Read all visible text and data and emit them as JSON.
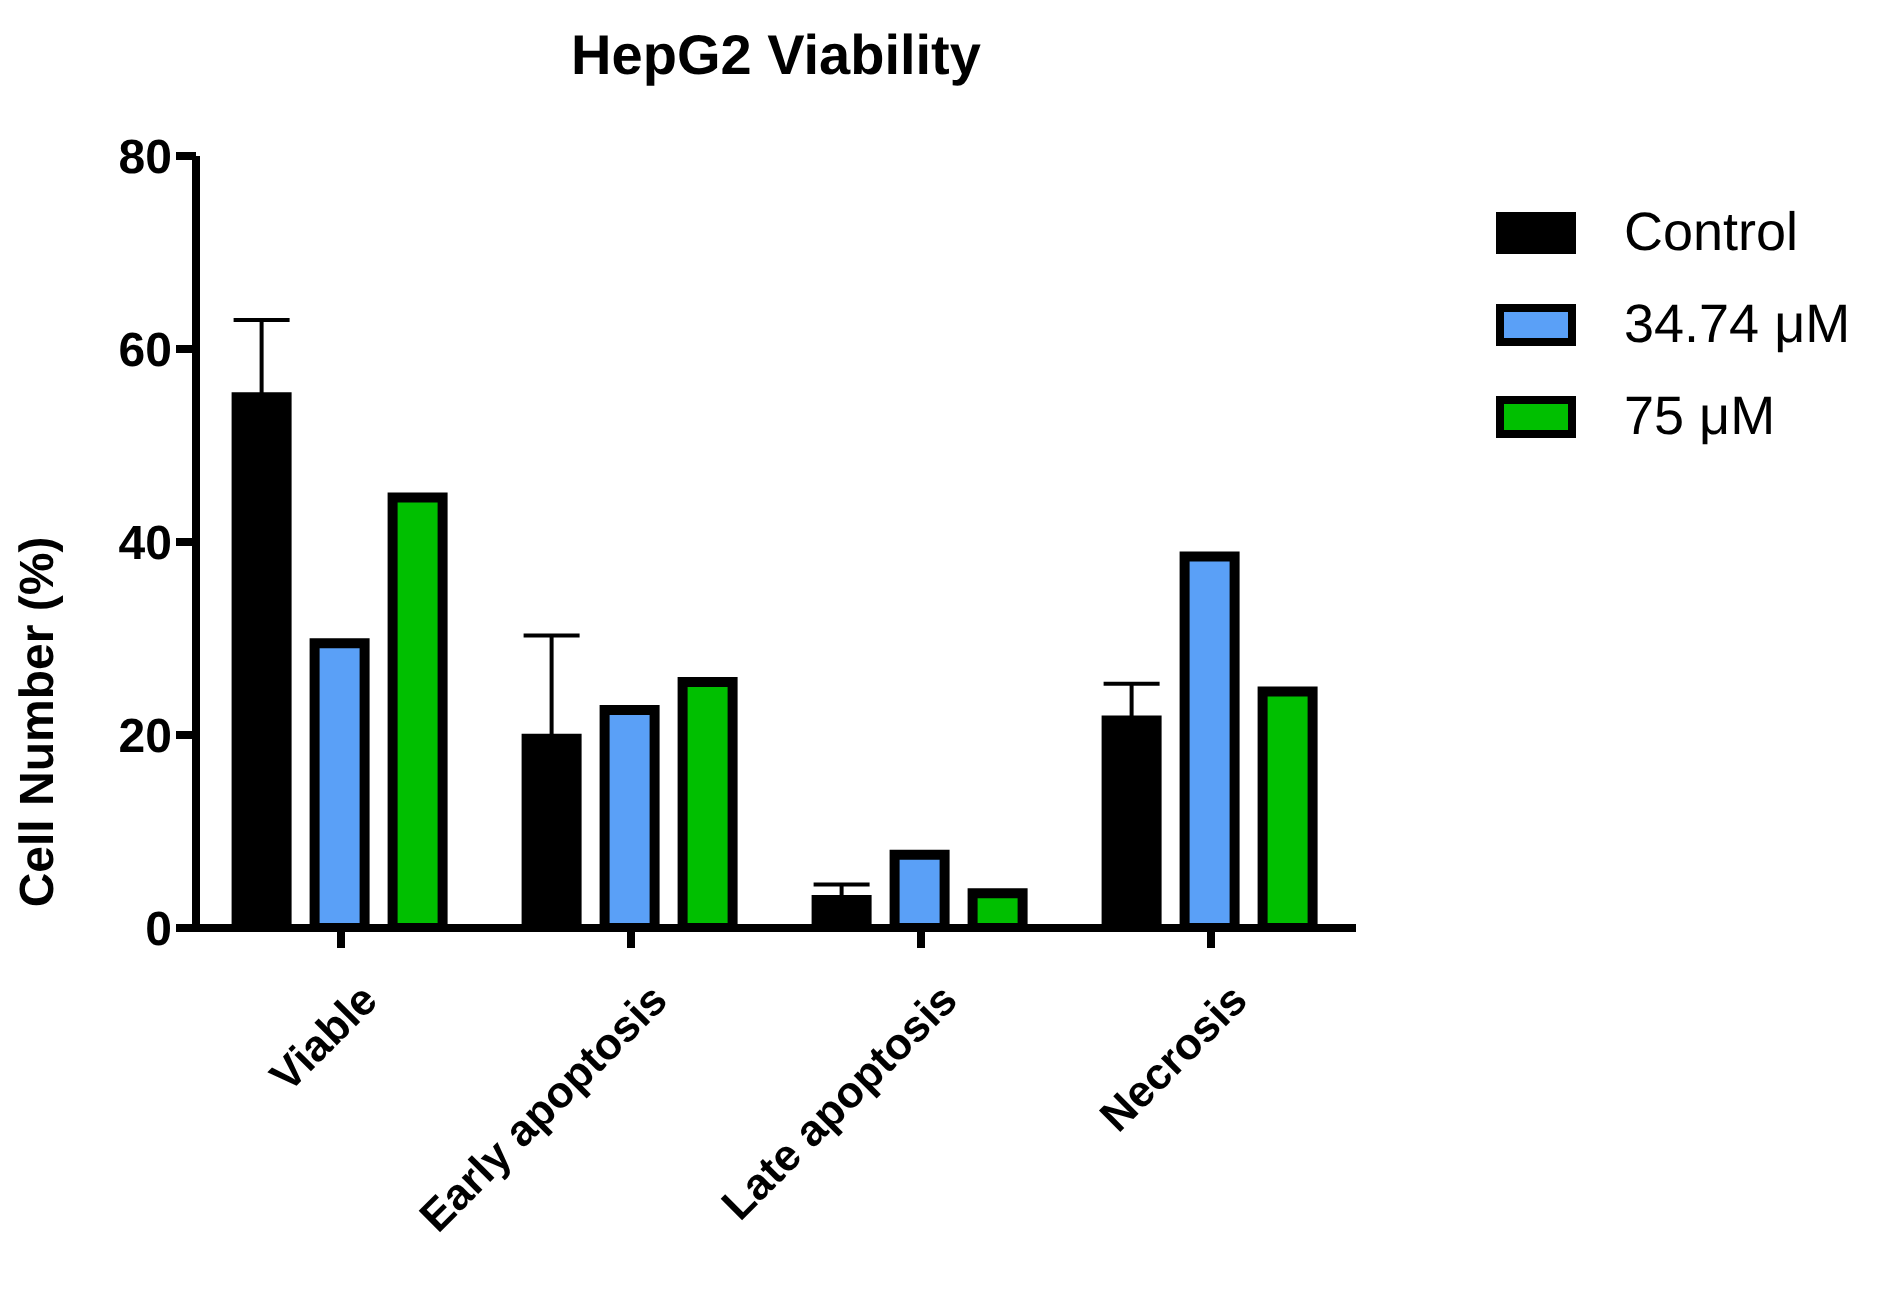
{
  "chart_data": {
    "type": "bar",
    "title": "HepG2 Viability",
    "ylabel": "Cell Number (%)",
    "categories": [
      "Viable",
      "Early apoptosis",
      "Late apoptosis",
      "Necrosis"
    ],
    "series": [
      {
        "name": "Control",
        "color": "#000000",
        "values": [
          55,
          19.6,
          2.9,
          21.5
        ],
        "errors": [
          [
            55,
            63
          ],
          [
            19.6,
            30.3
          ],
          [
            2.9,
            4.5
          ],
          [
            21.5,
            25.3
          ]
        ]
      },
      {
        "name": "34.74 μM",
        "color": "#5aa0f7",
        "values": [
          29.5,
          22.6,
          7.6,
          38.5
        ]
      },
      {
        "name": "75 μM",
        "color": "#00bf00",
        "values": [
          44.6,
          25.5,
          3.6,
          24.5
        ]
      }
    ],
    "ylim": [
      0,
      80
    ],
    "yticks": [
      0,
      20,
      40,
      60,
      80
    ],
    "grid": false,
    "legend": "top right"
  }
}
